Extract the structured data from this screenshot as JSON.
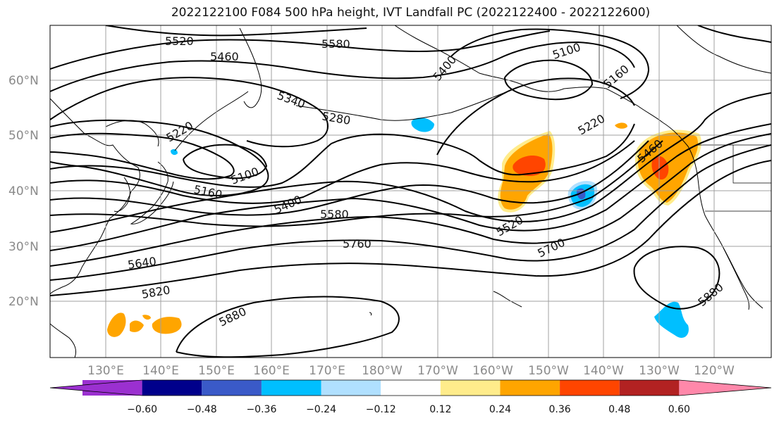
{
  "title": "2022122100 F084 500 hPa height, IVT Landfall PC (2022122400 - 2022122600)",
  "lat_labels": [
    "60°N",
    "50°N",
    "40°N",
    "30°N",
    "20°N"
  ],
  "lon_labels": [
    "130°E",
    "140°E",
    "150°E",
    "160°E",
    "170°E",
    "180°W",
    "170°W",
    "160°W",
    "150°W",
    "140°W",
    "130°W",
    "120°W"
  ],
  "contour_labels": [
    "5520",
    "5460",
    "5580",
    "5100",
    "5400",
    "5160",
    "5340",
    "5280",
    "5220",
    "5460",
    "5220",
    "5100",
    "5160",
    "5400",
    "5580",
    "5520",
    "5760",
    "5700",
    "5640",
    "5820",
    "5880",
    "5880"
  ],
  "colorbar": {
    "ticks": [
      "−0.60",
      "−0.48",
      "−0.36",
      "−0.24",
      "−0.12",
      "0.12",
      "0.24",
      "0.36",
      "0.48",
      "0.60"
    ],
    "colors": [
      "#9b30d0",
      "#00008b",
      "#3a5ac8",
      "#00bfff",
      "#b0e0ff",
      "#ffffff",
      "#ffec8b",
      "#ffa500",
      "#ff4500",
      "#b22222",
      "#ff88aa"
    ]
  },
  "colors": {
    "contour": "#000000",
    "coast": "#000000",
    "grid": "#a0a0a0"
  }
}
